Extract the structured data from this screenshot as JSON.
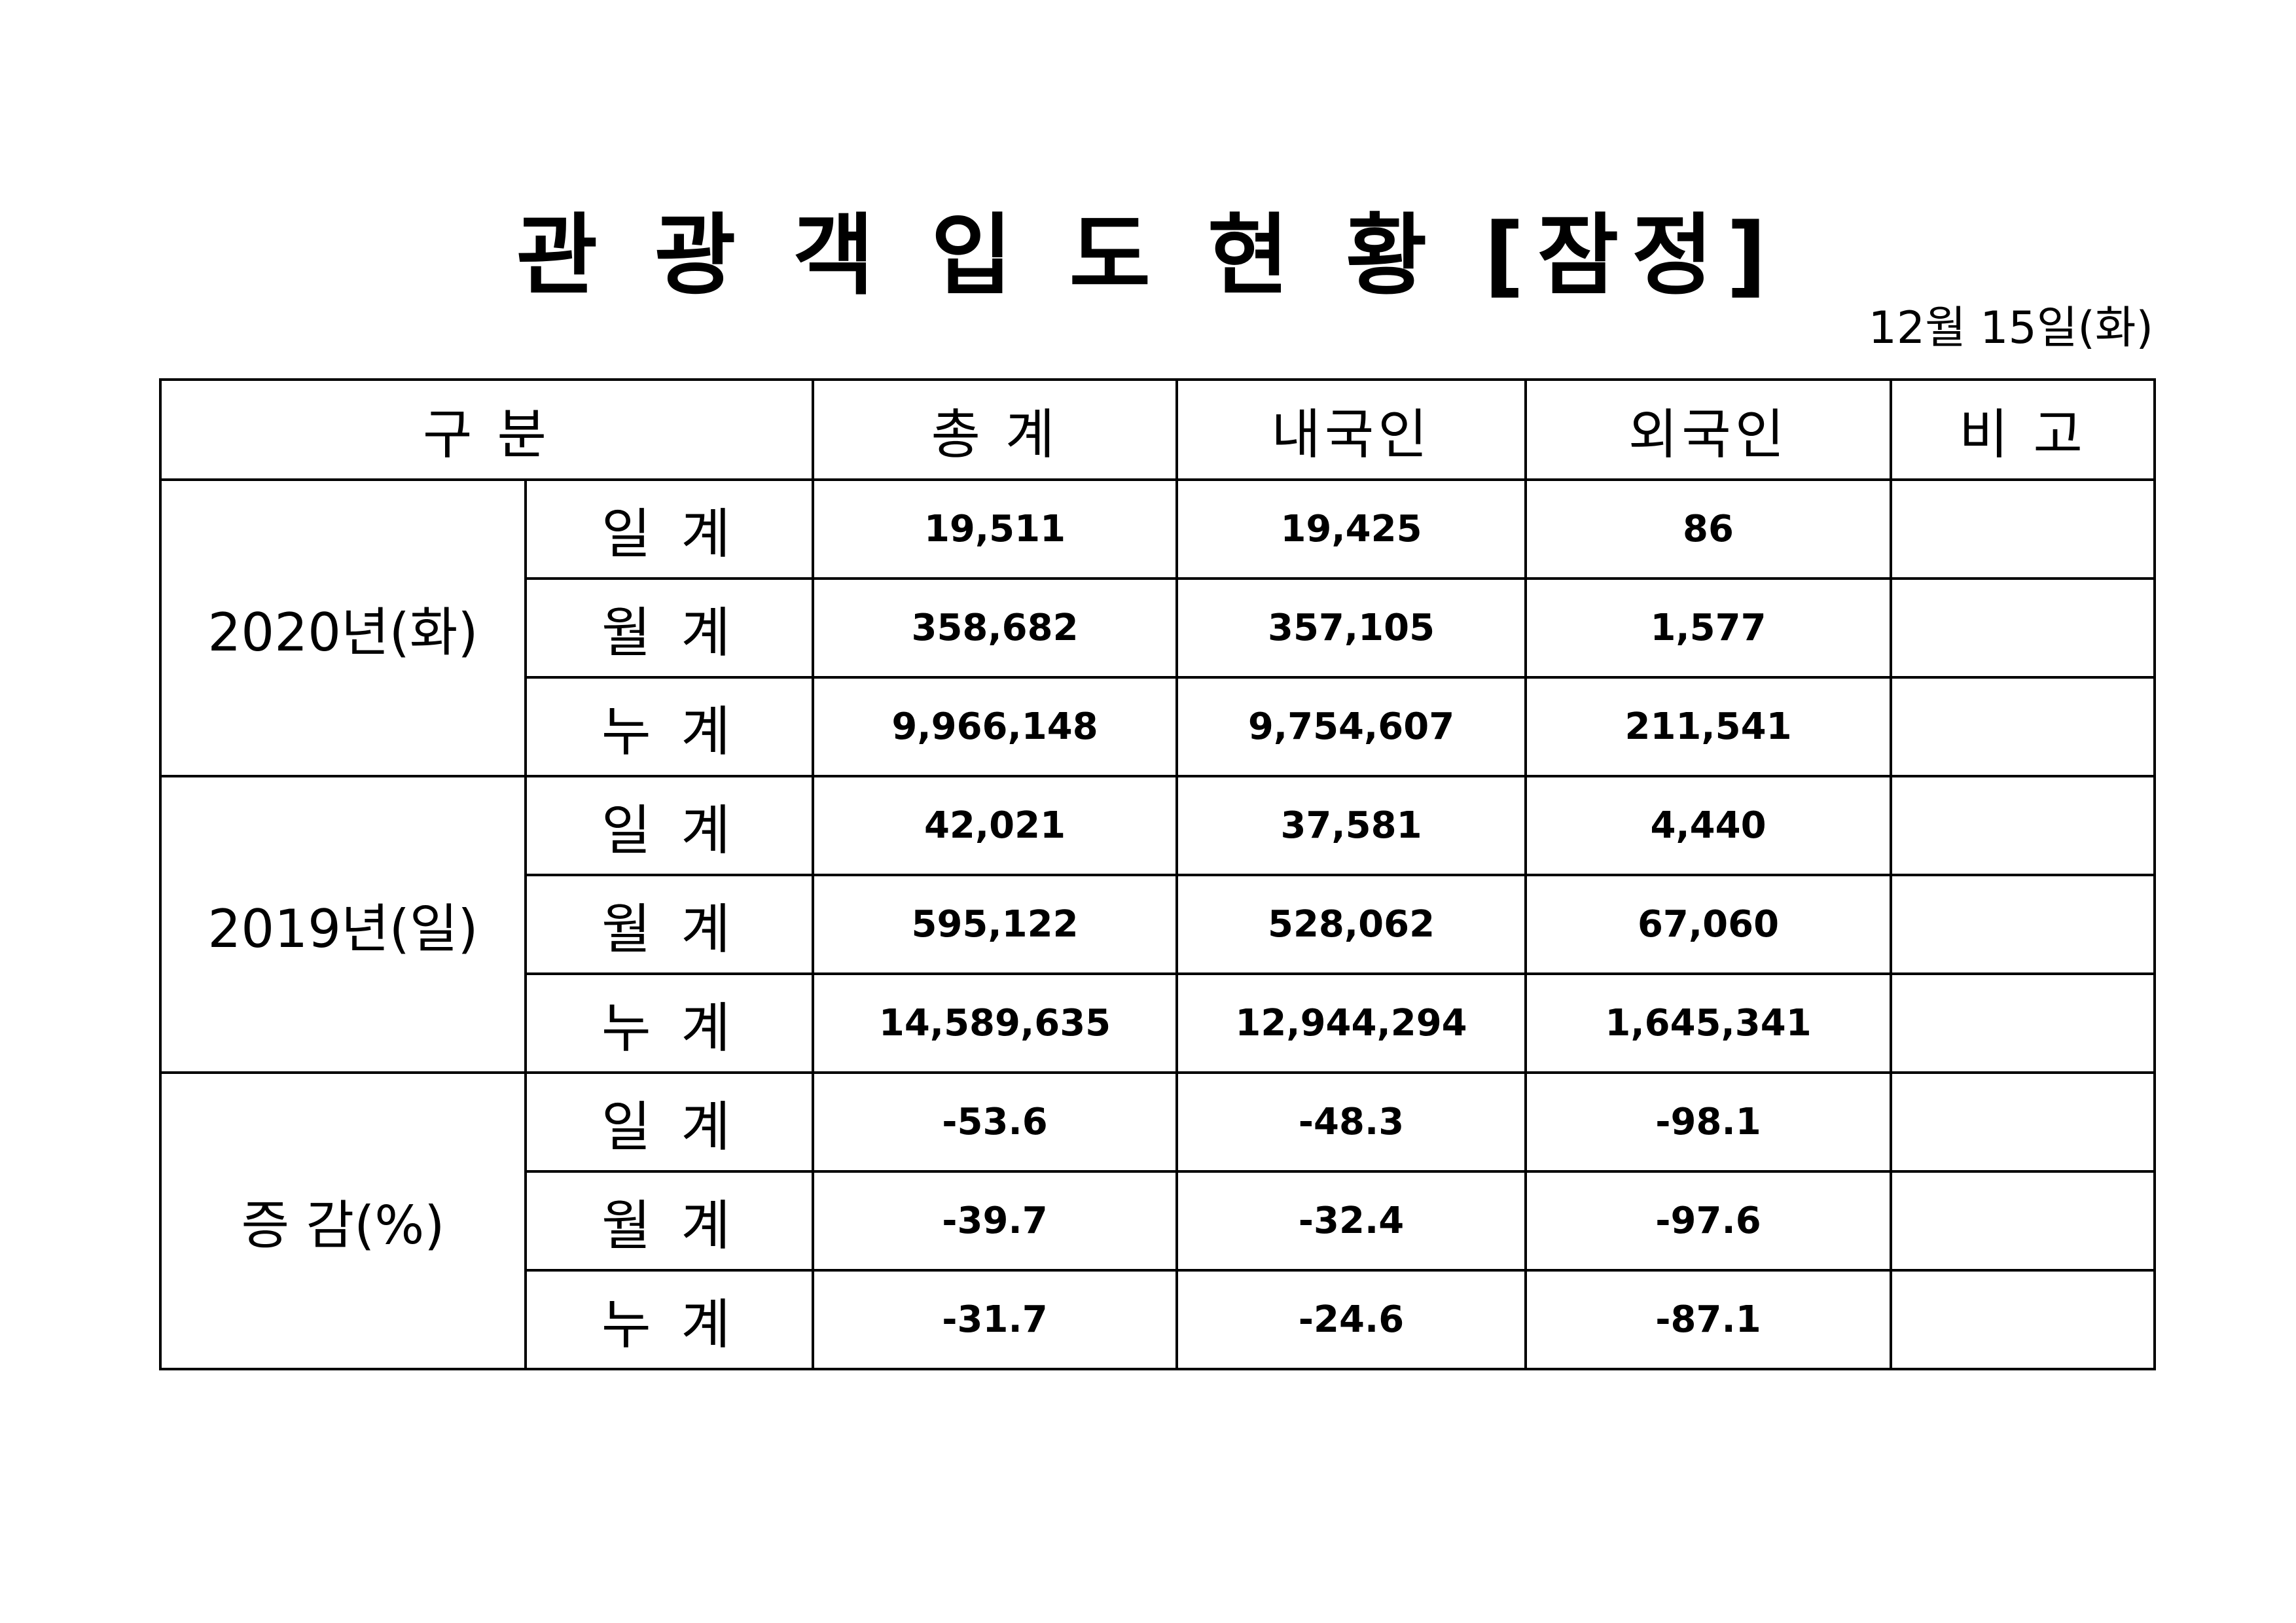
{
  "header": {
    "title": "관 광 객 입 도 현 황 [잠정]",
    "date": "12월 15일(화)"
  },
  "table": {
    "columns": [
      "구 분",
      "총 계",
      "내국인",
      "외국인",
      "비 고"
    ],
    "groups": [
      {
        "label": "2020년(화)",
        "rows": [
          [
            "일 계",
            "19,511",
            "19,425",
            "86"
          ],
          [
            "월 계",
            "358,682",
            "357,105",
            "1,577"
          ],
          [
            "누 계",
            "9,966,148",
            "9,754,607",
            "211,541"
          ]
        ]
      },
      {
        "label": "2019년(일)",
        "rows": [
          [
            "일 계",
            "42,021",
            "37,581",
            "4,440"
          ],
          [
            "월 계",
            "595,122",
            "528,062",
            "67,060"
          ],
          [
            "누 계",
            "14,589,635",
            "12,944,294",
            "1,645,341"
          ]
        ]
      },
      {
        "label": "증 감(%)",
        "rows": [
          [
            "일 계",
            "-53.6",
            "-48.3",
            "-98.1"
          ],
          [
            "월 계",
            "-39.7",
            "-32.4",
            "-97.6"
          ],
          [
            "누 계",
            "-31.7",
            "-24.6",
            "-87.1"
          ]
        ]
      }
    ]
  }
}
